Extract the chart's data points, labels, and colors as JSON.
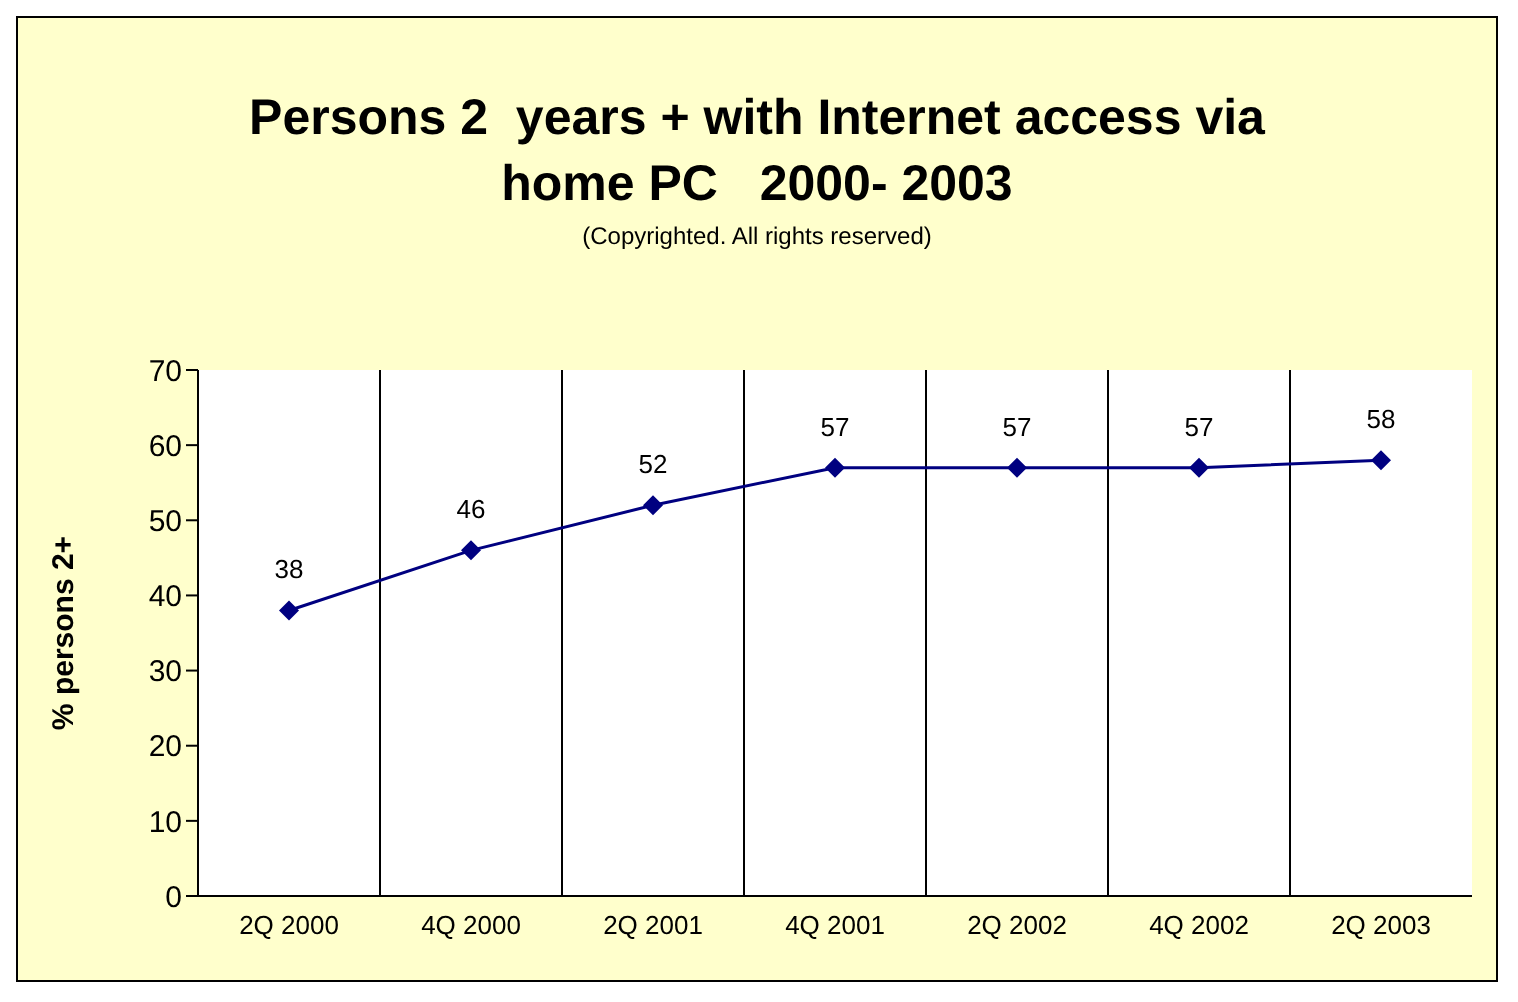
{
  "chart_data": {
    "type": "line",
    "title": "Persons 2  years + with Internet access via home PC   2000- 2003",
    "subtitle": "(Copyrighted. All rights reserved)",
    "ylabel": "% persons 2+",
    "categories": [
      "2Q 2000",
      "4Q 2000",
      "2Q 2001",
      "4Q 2001",
      "2Q 2002",
      "4Q 2002",
      "2Q 2003"
    ],
    "series": [
      {
        "color": "#000080",
        "values": [
          38,
          46,
          52,
          57,
          57,
          57,
          58
        ]
      }
    ],
    "ylim": [
      0,
      70
    ],
    "yticks": [
      0,
      10,
      20,
      30,
      40,
      50,
      60,
      70
    ],
    "grid": "x",
    "data_labels": true,
    "marker": "diamond",
    "line_style": "solid",
    "legend": false
  }
}
